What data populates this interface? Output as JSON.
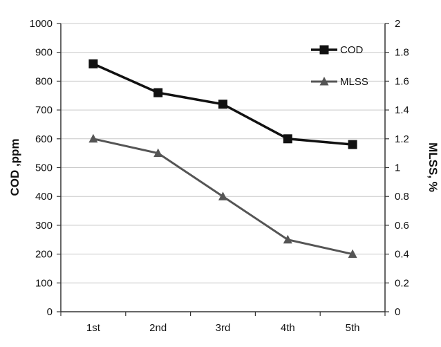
{
  "chart_data": {
    "type": "line",
    "categories": [
      "1st",
      "2nd",
      "3rd",
      "4th",
      "5th"
    ],
    "series": [
      {
        "name": "COD",
        "axis": "left",
        "values": [
          860,
          760,
          720,
          600,
          580
        ],
        "color": "#111111",
        "marker": "square"
      },
      {
        "name": "MLSS",
        "axis": "right",
        "values": [
          1.2,
          1.1,
          0.8,
          0.5,
          0.4
        ],
        "color": "#555555",
        "marker": "triangle"
      }
    ],
    "ylabel": "COD ,ppm",
    "y2label": "MLSS, %",
    "ylim": [
      0,
      1000
    ],
    "y2lim": [
      0,
      2
    ],
    "yticks": [
      "0",
      "100",
      "200",
      "300",
      "400",
      "500",
      "600",
      "700",
      "800",
      "900",
      "1000"
    ],
    "y2ticks": [
      "0",
      "0.2",
      "0.4",
      "0.6",
      "0.8",
      "1",
      "1.2",
      "1.4",
      "1.6",
      "1.8",
      "2"
    ],
    "grid": true,
    "legend": "top-right"
  }
}
